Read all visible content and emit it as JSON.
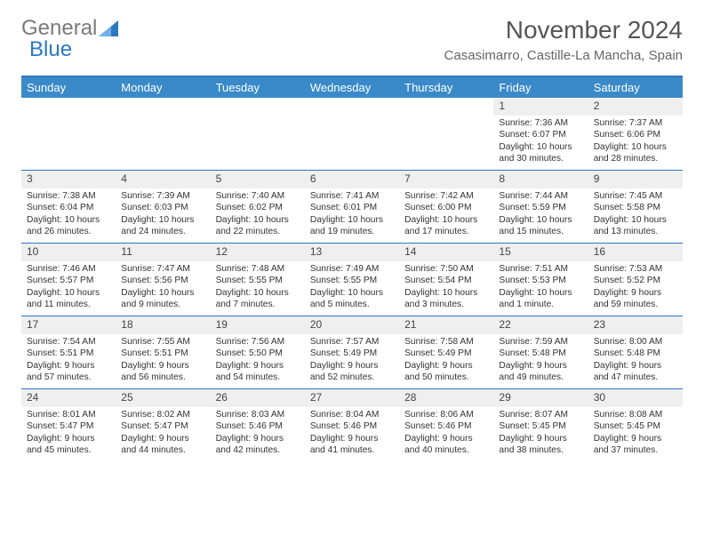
{
  "logo": {
    "text1": "General",
    "text2": "Blue",
    "accent_color": "#2b78c2",
    "grey": "#7a7a7a"
  },
  "title": "November 2024",
  "subtitle": "Casasimarro, Castille-La Mancha, Spain",
  "colors": {
    "header_bg": "#3a8ac9",
    "header_border": "#2b78c2",
    "daynum_bg": "#efefef",
    "text": "#333333"
  },
  "dayNames": [
    "Sunday",
    "Monday",
    "Tuesday",
    "Wednesday",
    "Thursday",
    "Friday",
    "Saturday"
  ],
  "weeks": [
    [
      {
        "n": "",
        "sr": "",
        "ss": "",
        "dl": ""
      },
      {
        "n": "",
        "sr": "",
        "ss": "",
        "dl": ""
      },
      {
        "n": "",
        "sr": "",
        "ss": "",
        "dl": ""
      },
      {
        "n": "",
        "sr": "",
        "ss": "",
        "dl": ""
      },
      {
        "n": "",
        "sr": "",
        "ss": "",
        "dl": ""
      },
      {
        "n": "1",
        "sr": "Sunrise: 7:36 AM",
        "ss": "Sunset: 6:07 PM",
        "dl": "Daylight: 10 hours and 30 minutes."
      },
      {
        "n": "2",
        "sr": "Sunrise: 7:37 AM",
        "ss": "Sunset: 6:06 PM",
        "dl": "Daylight: 10 hours and 28 minutes."
      }
    ],
    [
      {
        "n": "3",
        "sr": "Sunrise: 7:38 AM",
        "ss": "Sunset: 6:04 PM",
        "dl": "Daylight: 10 hours and 26 minutes."
      },
      {
        "n": "4",
        "sr": "Sunrise: 7:39 AM",
        "ss": "Sunset: 6:03 PM",
        "dl": "Daylight: 10 hours and 24 minutes."
      },
      {
        "n": "5",
        "sr": "Sunrise: 7:40 AM",
        "ss": "Sunset: 6:02 PM",
        "dl": "Daylight: 10 hours and 22 minutes."
      },
      {
        "n": "6",
        "sr": "Sunrise: 7:41 AM",
        "ss": "Sunset: 6:01 PM",
        "dl": "Daylight: 10 hours and 19 minutes."
      },
      {
        "n": "7",
        "sr": "Sunrise: 7:42 AM",
        "ss": "Sunset: 6:00 PM",
        "dl": "Daylight: 10 hours and 17 minutes."
      },
      {
        "n": "8",
        "sr": "Sunrise: 7:44 AM",
        "ss": "Sunset: 5:59 PM",
        "dl": "Daylight: 10 hours and 15 minutes."
      },
      {
        "n": "9",
        "sr": "Sunrise: 7:45 AM",
        "ss": "Sunset: 5:58 PM",
        "dl": "Daylight: 10 hours and 13 minutes."
      }
    ],
    [
      {
        "n": "10",
        "sr": "Sunrise: 7:46 AM",
        "ss": "Sunset: 5:57 PM",
        "dl": "Daylight: 10 hours and 11 minutes."
      },
      {
        "n": "11",
        "sr": "Sunrise: 7:47 AM",
        "ss": "Sunset: 5:56 PM",
        "dl": "Daylight: 10 hours and 9 minutes."
      },
      {
        "n": "12",
        "sr": "Sunrise: 7:48 AM",
        "ss": "Sunset: 5:55 PM",
        "dl": "Daylight: 10 hours and 7 minutes."
      },
      {
        "n": "13",
        "sr": "Sunrise: 7:49 AM",
        "ss": "Sunset: 5:55 PM",
        "dl": "Daylight: 10 hours and 5 minutes."
      },
      {
        "n": "14",
        "sr": "Sunrise: 7:50 AM",
        "ss": "Sunset: 5:54 PM",
        "dl": "Daylight: 10 hours and 3 minutes."
      },
      {
        "n": "15",
        "sr": "Sunrise: 7:51 AM",
        "ss": "Sunset: 5:53 PM",
        "dl": "Daylight: 10 hours and 1 minute."
      },
      {
        "n": "16",
        "sr": "Sunrise: 7:53 AM",
        "ss": "Sunset: 5:52 PM",
        "dl": "Daylight: 9 hours and 59 minutes."
      }
    ],
    [
      {
        "n": "17",
        "sr": "Sunrise: 7:54 AM",
        "ss": "Sunset: 5:51 PM",
        "dl": "Daylight: 9 hours and 57 minutes."
      },
      {
        "n": "18",
        "sr": "Sunrise: 7:55 AM",
        "ss": "Sunset: 5:51 PM",
        "dl": "Daylight: 9 hours and 56 minutes."
      },
      {
        "n": "19",
        "sr": "Sunrise: 7:56 AM",
        "ss": "Sunset: 5:50 PM",
        "dl": "Daylight: 9 hours and 54 minutes."
      },
      {
        "n": "20",
        "sr": "Sunrise: 7:57 AM",
        "ss": "Sunset: 5:49 PM",
        "dl": "Daylight: 9 hours and 52 minutes."
      },
      {
        "n": "21",
        "sr": "Sunrise: 7:58 AM",
        "ss": "Sunset: 5:49 PM",
        "dl": "Daylight: 9 hours and 50 minutes."
      },
      {
        "n": "22",
        "sr": "Sunrise: 7:59 AM",
        "ss": "Sunset: 5:48 PM",
        "dl": "Daylight: 9 hours and 49 minutes."
      },
      {
        "n": "23",
        "sr": "Sunrise: 8:00 AM",
        "ss": "Sunset: 5:48 PM",
        "dl": "Daylight: 9 hours and 47 minutes."
      }
    ],
    [
      {
        "n": "24",
        "sr": "Sunrise: 8:01 AM",
        "ss": "Sunset: 5:47 PM",
        "dl": "Daylight: 9 hours and 45 minutes."
      },
      {
        "n": "25",
        "sr": "Sunrise: 8:02 AM",
        "ss": "Sunset: 5:47 PM",
        "dl": "Daylight: 9 hours and 44 minutes."
      },
      {
        "n": "26",
        "sr": "Sunrise: 8:03 AM",
        "ss": "Sunset: 5:46 PM",
        "dl": "Daylight: 9 hours and 42 minutes."
      },
      {
        "n": "27",
        "sr": "Sunrise: 8:04 AM",
        "ss": "Sunset: 5:46 PM",
        "dl": "Daylight: 9 hours and 41 minutes."
      },
      {
        "n": "28",
        "sr": "Sunrise: 8:06 AM",
        "ss": "Sunset: 5:46 PM",
        "dl": "Daylight: 9 hours and 40 minutes."
      },
      {
        "n": "29",
        "sr": "Sunrise: 8:07 AM",
        "ss": "Sunset: 5:45 PM",
        "dl": "Daylight: 9 hours and 38 minutes."
      },
      {
        "n": "30",
        "sr": "Sunrise: 8:08 AM",
        "ss": "Sunset: 5:45 PM",
        "dl": "Daylight: 9 hours and 37 minutes."
      }
    ]
  ]
}
